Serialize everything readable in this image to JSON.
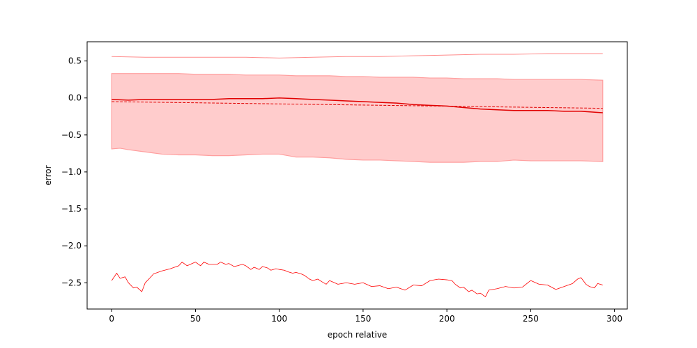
{
  "chart_data": {
    "type": "line",
    "title": "",
    "xlabel": "epoch relative",
    "ylabel": "error",
    "xlim": [
      -14.65,
      307.65
    ],
    "ylim": [
      -2.855,
      0.76
    ],
    "x_ticks": [
      0,
      50,
      100,
      150,
      200,
      250,
      300
    ],
    "x_tick_labels": [
      "0",
      "50",
      "100",
      "150",
      "200",
      "250",
      "300"
    ],
    "y_ticks": [
      0.5,
      0.0,
      -0.5,
      -1.0,
      -1.5,
      -2.0,
      -2.5
    ],
    "y_tick_labels": [
      "0.5",
      "0.0",
      "−0.5",
      "−1.0",
      "−1.5",
      "−2.0",
      "−2.5"
    ],
    "grid": false,
    "legend": "none",
    "colors": {
      "band_fill": "#ffcccc",
      "band_edge": "#ff9e9e",
      "mean": "#e00000",
      "trend": "#e00000",
      "max": "#ff8a8a",
      "min": "#ff0000"
    },
    "band": {
      "x": [
        0,
        5,
        10,
        20,
        30,
        40,
        50,
        60,
        70,
        80,
        90,
        100,
        110,
        120,
        130,
        140,
        150,
        160,
        170,
        180,
        190,
        200,
        210,
        220,
        230,
        240,
        250,
        260,
        270,
        280,
        293
      ],
      "upper": [
        0.33,
        0.33,
        0.33,
        0.33,
        0.33,
        0.33,
        0.32,
        0.32,
        0.32,
        0.31,
        0.31,
        0.31,
        0.3,
        0.3,
        0.3,
        0.29,
        0.29,
        0.28,
        0.28,
        0.28,
        0.27,
        0.27,
        0.26,
        0.26,
        0.26,
        0.25,
        0.25,
        0.25,
        0.25,
        0.25,
        0.24
      ],
      "lower": [
        -0.69,
        -0.68,
        -0.7,
        -0.73,
        -0.76,
        -0.77,
        -0.77,
        -0.78,
        -0.78,
        -0.77,
        -0.76,
        -0.76,
        -0.8,
        -0.8,
        -0.81,
        -0.83,
        -0.84,
        -0.84,
        -0.85,
        -0.86,
        -0.87,
        -0.87,
        -0.87,
        -0.86,
        -0.86,
        -0.84,
        -0.85,
        -0.85,
        -0.85,
        -0.85,
        -0.86
      ]
    },
    "series": [
      {
        "role": "mean",
        "x": [
          0,
          10,
          20,
          30,
          40,
          50,
          60,
          70,
          80,
          90,
          100,
          110,
          120,
          130,
          140,
          150,
          160,
          170,
          180,
          190,
          200,
          210,
          220,
          230,
          240,
          250,
          260,
          270,
          280,
          293
        ],
        "values": [
          -0.02,
          -0.03,
          -0.02,
          -0.02,
          -0.02,
          -0.02,
          -0.02,
          -0.01,
          -0.01,
          -0.01,
          0.0,
          -0.01,
          -0.02,
          -0.03,
          -0.04,
          -0.05,
          -0.06,
          -0.07,
          -0.09,
          -0.1,
          -0.11,
          -0.13,
          -0.15,
          -0.16,
          -0.17,
          -0.17,
          -0.17,
          -0.18,
          -0.18,
          -0.2
        ]
      },
      {
        "role": "trend",
        "x": [
          0,
          293
        ],
        "values": [
          -0.05,
          -0.14
        ]
      },
      {
        "role": "max",
        "x": [
          0,
          20,
          40,
          60,
          80,
          100,
          120,
          140,
          160,
          180,
          200,
          220,
          240,
          260,
          280,
          293
        ],
        "values": [
          0.56,
          0.55,
          0.55,
          0.55,
          0.55,
          0.54,
          0.55,
          0.56,
          0.56,
          0.57,
          0.58,
          0.59,
          0.59,
          0.6,
          0.6,
          0.6
        ]
      },
      {
        "role": "min",
        "x": [
          0,
          3,
          5,
          8,
          10,
          13,
          15,
          18,
          20,
          23,
          25,
          30,
          35,
          40,
          42,
          45,
          48,
          50,
          53,
          55,
          58,
          60,
          63,
          65,
          68,
          70,
          73,
          75,
          78,
          80,
          83,
          85,
          88,
          90,
          93,
          95,
          98,
          100,
          103,
          105,
          108,
          110,
          113,
          115,
          118,
          120,
          123,
          125,
          128,
          130,
          135,
          140,
          145,
          150,
          155,
          160,
          165,
          170,
          175,
          180,
          185,
          190,
          195,
          200,
          203,
          205,
          208,
          210,
          213,
          215,
          218,
          220,
          223,
          225,
          230,
          235,
          240,
          245,
          250,
          255,
          260,
          265,
          270,
          275,
          278,
          280,
          283,
          285,
          288,
          290,
          293
        ],
        "values": [
          -2.47,
          -2.37,
          -2.44,
          -2.42,
          -2.5,
          -2.57,
          -2.56,
          -2.62,
          -2.5,
          -2.43,
          -2.38,
          -2.34,
          -2.31,
          -2.27,
          -2.22,
          -2.27,
          -2.24,
          -2.22,
          -2.27,
          -2.22,
          -2.25,
          -2.25,
          -2.25,
          -2.22,
          -2.25,
          -2.24,
          -2.28,
          -2.27,
          -2.25,
          -2.27,
          -2.32,
          -2.29,
          -2.32,
          -2.28,
          -2.3,
          -2.33,
          -2.31,
          -2.32,
          -2.33,
          -2.35,
          -2.37,
          -2.36,
          -2.38,
          -2.4,
          -2.45,
          -2.47,
          -2.45,
          -2.48,
          -2.52,
          -2.47,
          -2.52,
          -2.5,
          -2.52,
          -2.5,
          -2.55,
          -2.54,
          -2.58,
          -2.56,
          -2.6,
          -2.53,
          -2.54,
          -2.47,
          -2.45,
          -2.46,
          -2.47,
          -2.52,
          -2.57,
          -2.56,
          -2.62,
          -2.6,
          -2.65,
          -2.64,
          -2.69,
          -2.6,
          -2.58,
          -2.55,
          -2.57,
          -2.56,
          -2.47,
          -2.52,
          -2.53,
          -2.59,
          -2.55,
          -2.51,
          -2.45,
          -2.43,
          -2.52,
          -2.55,
          -2.57,
          -2.51,
          -2.53
        ]
      }
    ]
  }
}
